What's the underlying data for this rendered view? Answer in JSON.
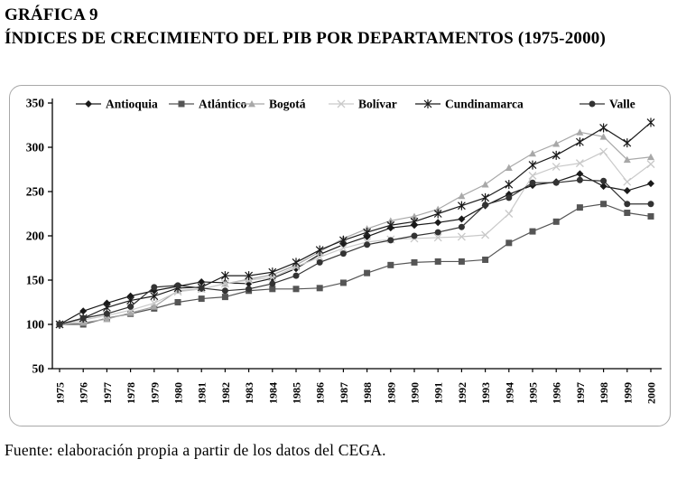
{
  "page": {
    "title_line1": "GRÁFICA 9",
    "title_line2": "ÍNDICES DE CRECIMIENTO DEL PIB POR DEPARTAMENTOS (1975-2000)",
    "source": "Fuente: elaboración propia a partir de los datos del CEGA."
  },
  "chart_data": {
    "type": "line",
    "title": "",
    "xlabel": "",
    "ylabel": "",
    "ylim": [
      50,
      350
    ],
    "yticks": [
      50,
      100,
      150,
      200,
      250,
      300,
      350
    ],
    "grid": false,
    "legend_position": "top",
    "x": [
      1975,
      1976,
      1977,
      1978,
      1979,
      1980,
      1981,
      1982,
      1983,
      1984,
      1985,
      1986,
      1987,
      1988,
      1989,
      1990,
      1991,
      1992,
      1993,
      1994,
      1995,
      1996,
      1997,
      1998,
      1999,
      2000
    ],
    "series": [
      {
        "name": "Antioquia",
        "marker": "diamond",
        "color": "#1a1a1a",
        "values": [
          100,
          115,
          124,
          132,
          138,
          143,
          148,
          147,
          146,
          152,
          163,
          179,
          190,
          199,
          209,
          212,
          215,
          219,
          234,
          247,
          257,
          261,
          270,
          256,
          251,
          259
        ]
      },
      {
        "name": "Atlántico",
        "marker": "square",
        "color": "#555555",
        "values": [
          100,
          100,
          107,
          112,
          118,
          125,
          129,
          131,
          138,
          140,
          140,
          141,
          147,
          158,
          167,
          170,
          171,
          171,
          173,
          192,
          205,
          216,
          232,
          236,
          226,
          222
        ]
      },
      {
        "name": "Bogotá",
        "marker": "triangle",
        "color": "#a8a8a8",
        "values": [
          100,
          102,
          106,
          113,
          120,
          138,
          140,
          146,
          151,
          156,
          167,
          182,
          197,
          208,
          217,
          222,
          230,
          245,
          258,
          277,
          293,
          304,
          317,
          312,
          286,
          289
        ]
      },
      {
        "name": "Bolívar",
        "marker": "x",
        "color": "#c9c9c9",
        "values": [
          100,
          105,
          110,
          116,
          124,
          137,
          140,
          146,
          150,
          153,
          165,
          176,
          186,
          193,
          196,
          197,
          198,
          199,
          201,
          225,
          268,
          278,
          282,
          295,
          261,
          281
        ]
      },
      {
        "name": "Cundinamarca",
        "marker": "asterisk",
        "color": "#1a1a1a",
        "values": [
          100,
          107,
          119,
          127,
          132,
          141,
          142,
          155,
          155,
          159,
          170,
          184,
          195,
          204,
          212,
          216,
          225,
          234,
          243,
          258,
          280,
          291,
          306,
          322,
          305,
          328
        ]
      },
      {
        "name": "Valle",
        "marker": "circle",
        "color": "#333333",
        "values": [
          100,
          107,
          112,
          120,
          142,
          144,
          141,
          138,
          140,
          146,
          155,
          170,
          180,
          190,
          195,
          200,
          204,
          210,
          235,
          243,
          260,
          260,
          263,
          262,
          236,
          236
        ]
      }
    ]
  }
}
